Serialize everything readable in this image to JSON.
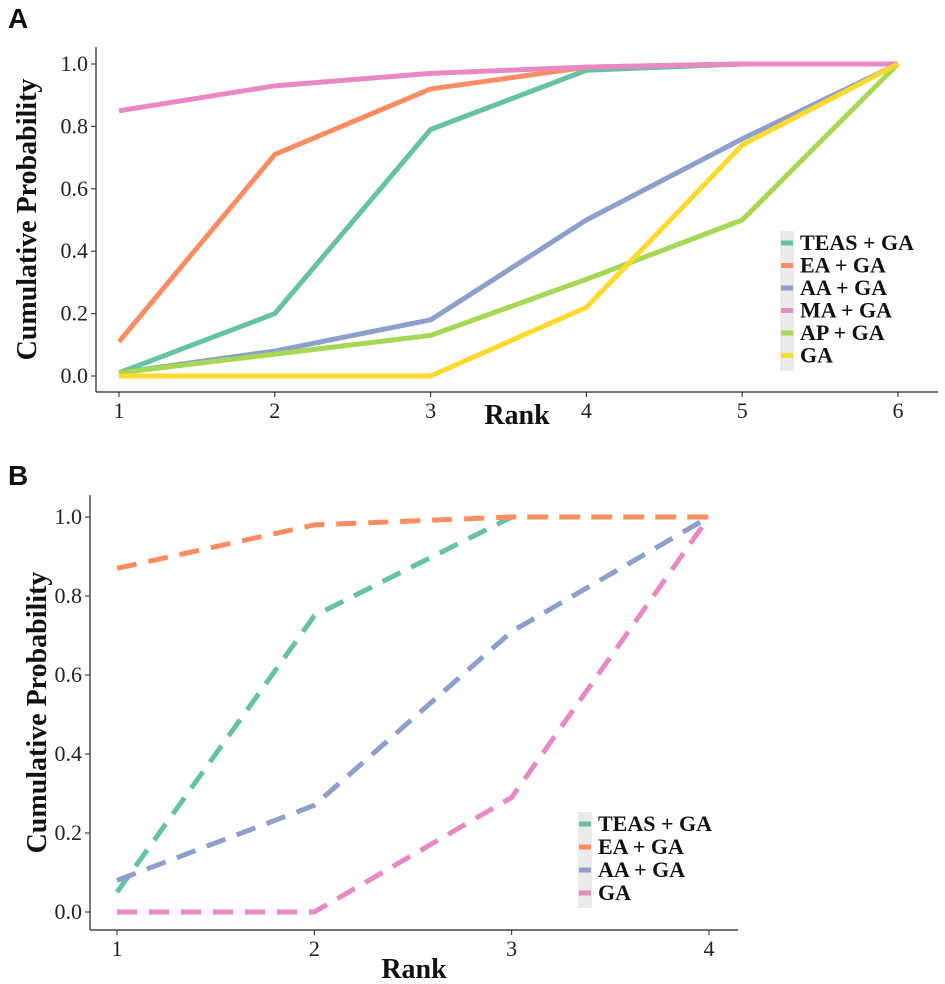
{
  "chart_data": [
    {
      "type": "line",
      "panel_label": "A",
      "xlabel": "Rank",
      "ylabel": "Cumulative Probability",
      "x": [
        1,
        2,
        3,
        4,
        5,
        6
      ],
      "xlim": [
        1,
        6
      ],
      "ylim": [
        0,
        1
      ],
      "yticks": [
        "0.0",
        "0.2",
        "0.4",
        "0.6",
        "0.8",
        "1.0"
      ],
      "xticks": [
        "1",
        "2",
        "3",
        "4",
        "5",
        "6"
      ],
      "grid": false,
      "legend_position": "right",
      "line_style": "solid",
      "series": [
        {
          "name": "TEAS + GA",
          "color": "#66C2A5",
          "values": [
            0.01,
            0.2,
            0.79,
            0.98,
            1.0,
            1.0
          ]
        },
        {
          "name": "EA + GA",
          "color": "#FC8D62",
          "values": [
            0.11,
            0.71,
            0.92,
            0.99,
            1.0,
            1.0
          ]
        },
        {
          "name": "AA + GA",
          "color": "#8DA0CB",
          "values": [
            0.01,
            0.08,
            0.18,
            0.5,
            0.76,
            1.0
          ]
        },
        {
          "name": "MA + GA",
          "color": "#E78AC3",
          "values": [
            0.85,
            0.93,
            0.97,
            0.99,
            1.0,
            1.0
          ]
        },
        {
          "name": "AP + GA",
          "color": "#A6D854",
          "values": [
            0.01,
            0.07,
            0.13,
            0.31,
            0.5,
            1.0
          ]
        },
        {
          "name": "GA",
          "color": "#FFD92F",
          "values": [
            0.0,
            0.0,
            0.0,
            0.22,
            0.74,
            1.0
          ]
        }
      ]
    },
    {
      "type": "line",
      "panel_label": "B",
      "xlabel": "Rank",
      "ylabel": "Cumulative Probability",
      "x": [
        1,
        2,
        3,
        4
      ],
      "xlim": [
        1,
        4
      ],
      "ylim": [
        0,
        1
      ],
      "yticks": [
        "0.0",
        "0.2",
        "0.4",
        "0.6",
        "0.8",
        "1.0"
      ],
      "xticks": [
        "1",
        "2",
        "3",
        "4"
      ],
      "grid": false,
      "legend_position": "bottom-right",
      "line_style": "dashed",
      "series": [
        {
          "name": "TEAS + GA",
          "color": "#66C2A5",
          "values": [
            0.05,
            0.75,
            1.0,
            1.0
          ]
        },
        {
          "name": "EA + GA",
          "color": "#FC8D62",
          "values": [
            0.87,
            0.98,
            1.0,
            1.0
          ]
        },
        {
          "name": "AA + GA",
          "color": "#8DA0CB",
          "values": [
            0.08,
            0.27,
            0.71,
            1.0
          ]
        },
        {
          "name": "GA",
          "color": "#E78AC3",
          "values": [
            0.0,
            0.0,
            0.29,
            1.0
          ]
        }
      ]
    }
  ]
}
